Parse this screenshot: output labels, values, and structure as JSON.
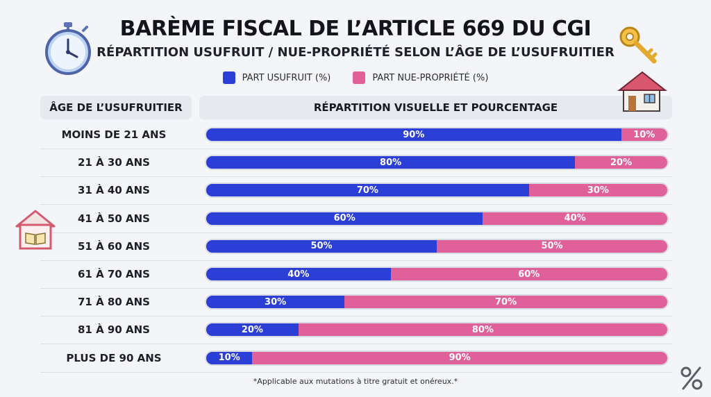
{
  "title": "BARÈME FISCAL DE L’ARTICLE 669 DU CGI",
  "subtitle": "RÉPARTITION USUFRUIT / NUE-PROPRIÉTÉ SELON L’ÂGE DE L’USUFRUITIER",
  "legend": {
    "usufruit": "PART USUFRUIT (%)",
    "nue": "PART NUE-PROPRIÉTÉ (%)"
  },
  "colors": {
    "usufruit": "#2b3fd6",
    "nue": "#e0609a"
  },
  "table": {
    "col_age": "ÂGE DE L’USUFRUITIER",
    "col_bar": "RÉPARTITION VISUELLE ET POURCENTAGE"
  },
  "footnote": "*Applicable aux mutations à titre gratuit et onéreux.*",
  "icons": [
    "stopwatch-icon",
    "key-icon",
    "house-icon",
    "book-house-icon",
    "percent-icon"
  ],
  "chart_data": {
    "type": "bar",
    "stacked": true,
    "orientation": "horizontal",
    "categories": [
      "MOINS DE 21 ANS",
      "21 À 30 ANS",
      "31 À 40 ANS",
      "41 À 50 ANS",
      "51 À 60 ANS",
      "61 À 70 ANS",
      "71 À 80 ANS",
      "81 À 90 ANS",
      "PLUS DE 90 ANS"
    ],
    "series": [
      {
        "name": "PART USUFRUIT (%)",
        "values": [
          90,
          80,
          70,
          60,
          50,
          40,
          30,
          20,
          10
        ]
      },
      {
        "name": "PART NUE-PROPRIÉTÉ (%)",
        "values": [
          10,
          20,
          30,
          40,
          50,
          60,
          70,
          80,
          90
        ]
      }
    ],
    "xlim": [
      0,
      100
    ],
    "unit": "%"
  }
}
